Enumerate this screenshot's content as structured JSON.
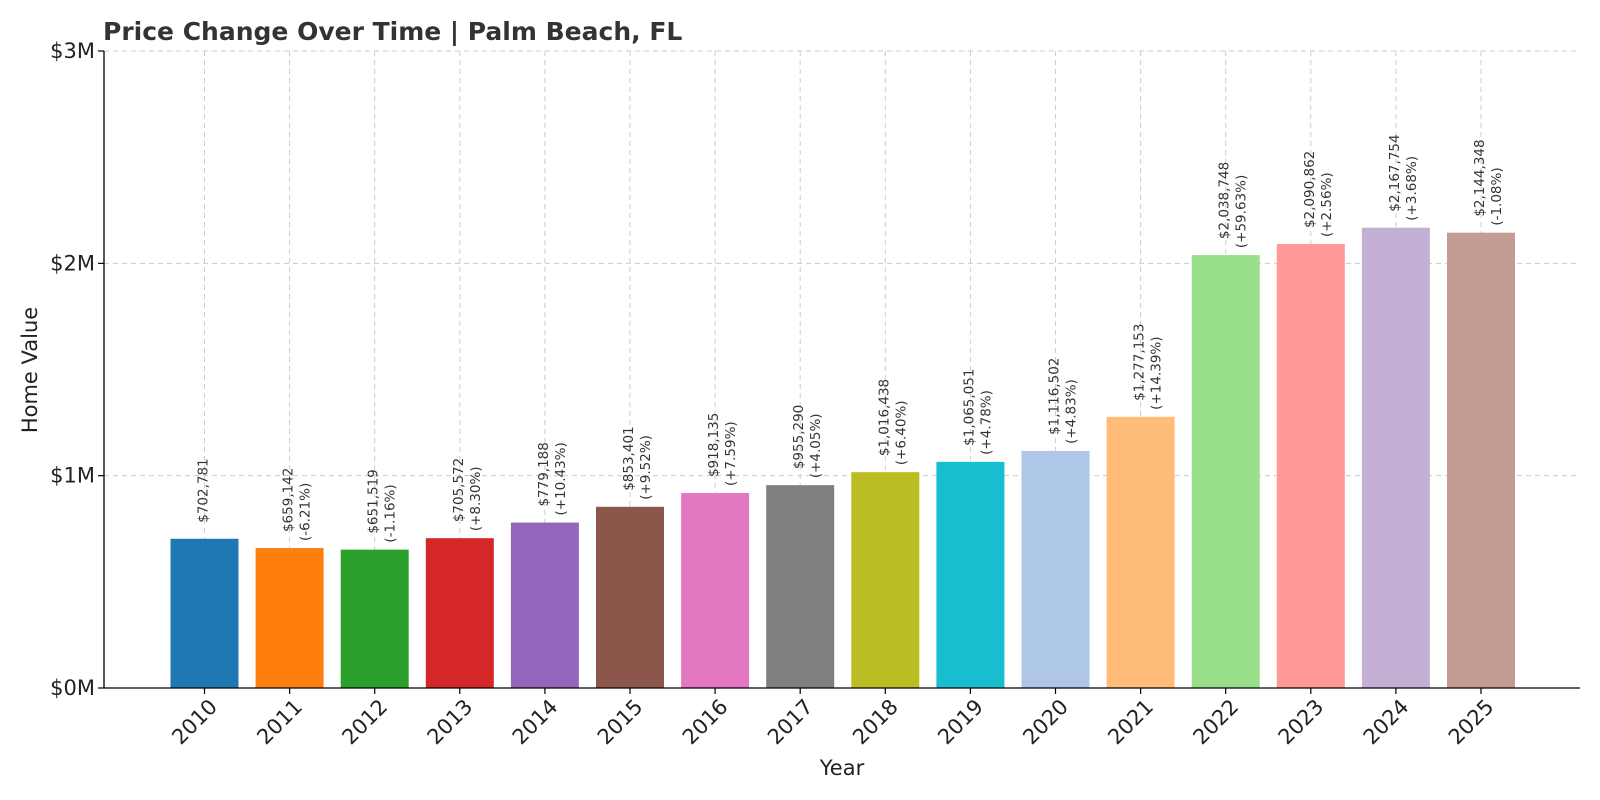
{
  "chart_data": {
    "type": "bar",
    "title": "Price Change Over Time | Palm Beach, FL",
    "xlabel": "Year",
    "ylabel": "Home Value",
    "ylim": [
      0,
      3000000
    ],
    "yticks": [
      {
        "value": 0,
        "label": "$0M"
      },
      {
        "value": 1000000,
        "label": "$1M"
      },
      {
        "value": 2000000,
        "label": "$2M"
      },
      {
        "value": 3000000,
        "label": "$3M"
      }
    ],
    "grid": true,
    "categories": [
      "2010",
      "2011",
      "2012",
      "2013",
      "2014",
      "2015",
      "2016",
      "2017",
      "2018",
      "2019",
      "2020",
      "2021",
      "2022",
      "2023",
      "2024",
      "2025"
    ],
    "values": [
      702781,
      659142,
      651519,
      705572,
      779188,
      853401,
      918135,
      955290,
      1016438,
      1065051,
      1116502,
      1277153,
      2038748,
      2090862,
      2167754,
      2144348
    ],
    "value_labels": [
      "$702,781",
      "$659,142",
      "$651,519",
      "$705,572",
      "$779,188",
      "$853,401",
      "$918,135",
      "$955,290",
      "$1,016,438",
      "$1,065,051",
      "$1,116,502",
      "$1,277,153",
      "$2,038,748",
      "$2,090,862",
      "$2,167,754",
      "$2,144,348"
    ],
    "change_labels": [
      "",
      "(-6.21%)",
      "(-1.16%)",
      "(+8.30%)",
      "(+10.43%)",
      "(+9.52%)",
      "(+7.59%)",
      "(+4.05%)",
      "(+6.40%)",
      "(+4.78%)",
      "(+4.83%)",
      "(+14.39%)",
      "(+59.63%)",
      "(+2.56%)",
      "(+3.68%)",
      "(-1.08%)"
    ],
    "colors": [
      "#1f77b4",
      "#ff7f0e",
      "#2ca02c",
      "#d62728",
      "#9467bd",
      "#8c564b",
      "#e377c2",
      "#7f7f7f",
      "#bcbd22",
      "#17becf",
      "#aec7e8",
      "#ffbb78",
      "#98df8a",
      "#ff9896",
      "#c5b0d5",
      "#c49c94"
    ]
  }
}
